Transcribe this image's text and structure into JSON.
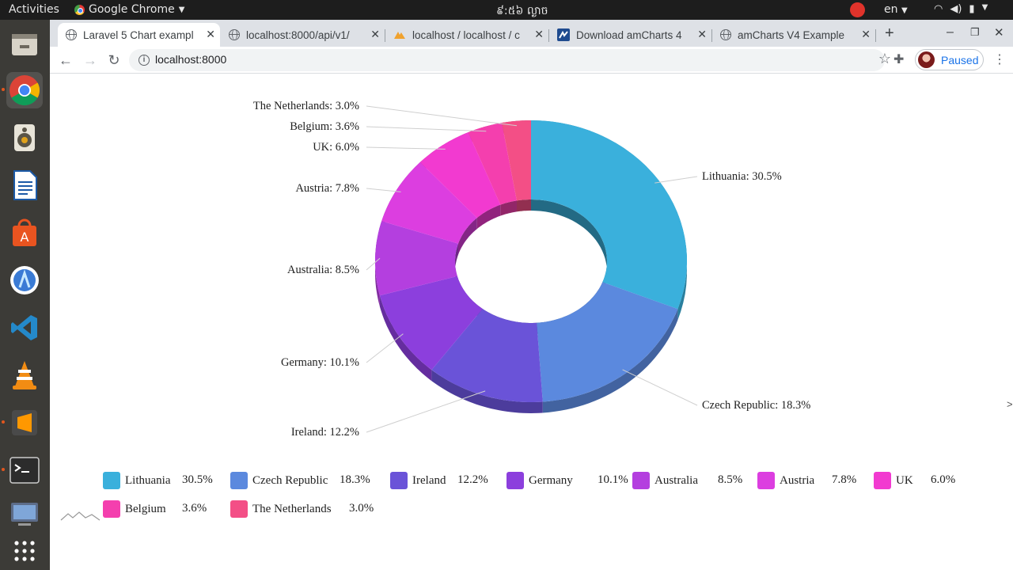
{
  "topbar": {
    "activities": "Activities",
    "app_name": "Google Chrome",
    "clock": "៩:៥៦ ល្ងាច",
    "lang": "en"
  },
  "tabs": [
    {
      "title": "Laravel 5 Chart exampl",
      "icon": "globe-icon"
    },
    {
      "title": "localhost:8000/api/v1/",
      "icon": "globe-icon"
    },
    {
      "title": "localhost / localhost / c",
      "icon": "phpmyadmin-icon"
    },
    {
      "title": "Download amCharts 4",
      "icon": "amcharts-icon"
    },
    {
      "title": "amCharts V4 Example",
      "icon": "globe-icon"
    }
  ],
  "toolbar": {
    "url": "localhost:8000",
    "profile_label": "Paused"
  },
  "chart_data": {
    "type": "pie",
    "variant": "donut-3d",
    "categories": [
      "Lithuania",
      "Czech Republic",
      "Ireland",
      "Germany",
      "Australia",
      "Austria",
      "UK",
      "Belgium",
      "The Netherlands"
    ],
    "values": [
      30.5,
      18.3,
      12.2,
      10.1,
      8.5,
      7.8,
      6.0,
      3.6,
      3.0
    ],
    "labels": [
      "Lithuania: 30.5%",
      "Czech Republic: 18.3%",
      "Ireland: 12.2%",
      "Germany: 10.1%",
      "Australia: 8.5%",
      "Austria: 7.8%",
      "UK: 6.0%",
      "Belgium: 3.6%",
      "The Netherlands: 3.0%"
    ],
    "percents": [
      "30.5%",
      "18.3%",
      "12.2%",
      "10.1%",
      "8.5%",
      "7.8%",
      "6.0%",
      "3.6%",
      "3.0%"
    ],
    "colors": [
      "#3ab0dc",
      "#5b89de",
      "#6a53d8",
      "#8c3fdd",
      "#b43fdf",
      "#dc3ee0",
      "#f23ad0",
      "#f43fae",
      "#f34f86"
    ],
    "legend_placement": "bottom"
  }
}
